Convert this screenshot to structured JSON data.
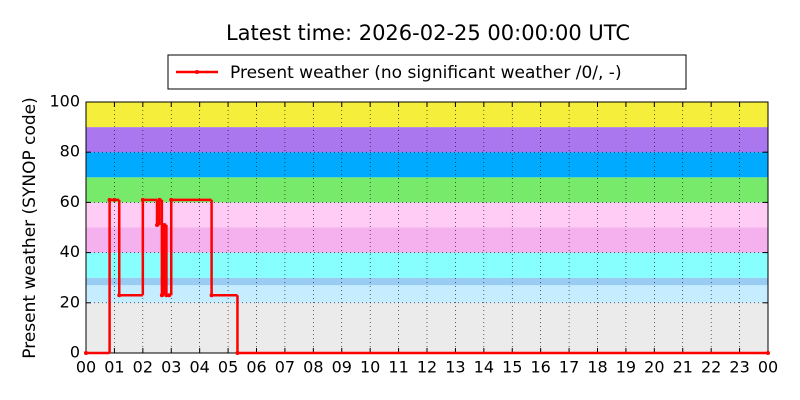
{
  "chart_data": {
    "type": "step",
    "title": "Latest time: 2026-02-25 00:00:00 UTC",
    "y_label": "Present weather (SYNOP code)",
    "x": [
      0,
      0.83,
      1.0,
      1.17,
      2.0,
      2.5,
      2.58,
      2.67,
      2.75,
      2.83,
      2.92,
      3.0,
      4.42,
      5.33,
      24
    ],
    "series": [
      {
        "name": "Present weather (no significant weather /0/, -)",
        "color": "#ff0000",
        "values": [
          0,
          61,
          61,
          23,
          61,
          51,
          61,
          23,
          51,
          23,
          23,
          61,
          23,
          0,
          0
        ]
      }
    ],
    "xlim": [
      0,
      24
    ],
    "xticks": [
      {
        "value": 0,
        "label": "00"
      },
      {
        "value": 1,
        "label": "01"
      },
      {
        "value": 2,
        "label": "02"
      },
      {
        "value": 3,
        "label": "03"
      },
      {
        "value": 4,
        "label": "04"
      },
      {
        "value": 5,
        "label": "05"
      },
      {
        "value": 6,
        "label": "06"
      },
      {
        "value": 7,
        "label": "07"
      },
      {
        "value": 8,
        "label": "08"
      },
      {
        "value": 9,
        "label": "09"
      },
      10,
      11,
      12,
      13,
      14,
      15,
      16,
      17,
      18,
      19,
      20,
      21,
      22,
      23,
      {
        "value": 24,
        "label": "00"
      }
    ],
    "ylim": [
      0,
      100
    ],
    "yticks": [
      0,
      20,
      40,
      60,
      80,
      100
    ],
    "grid": true,
    "bands": [
      {
        "from": 0,
        "to": 20,
        "color": "#ebebeb"
      },
      {
        "from": 20,
        "to": 27,
        "color": "#c6ecff"
      },
      {
        "from": 27,
        "to": 30,
        "color": "#99ccf2"
      },
      {
        "from": 30,
        "to": 40,
        "color": "#88ffff"
      },
      {
        "from": 40,
        "to": 50,
        "color": "#f5b0ee"
      },
      {
        "from": 50,
        "to": 60,
        "color": "#ffccf6"
      },
      {
        "from": 60,
        "to": 70,
        "color": "#77ea6c"
      },
      {
        "from": 70,
        "to": 80,
        "color": "#00aaff"
      },
      {
        "from": 80,
        "to": 90,
        "color": "#aa77ee"
      },
      {
        "from": 90,
        "to": 100,
        "color": "#f5ee3a"
      }
    ],
    "legend": "top-center"
  }
}
